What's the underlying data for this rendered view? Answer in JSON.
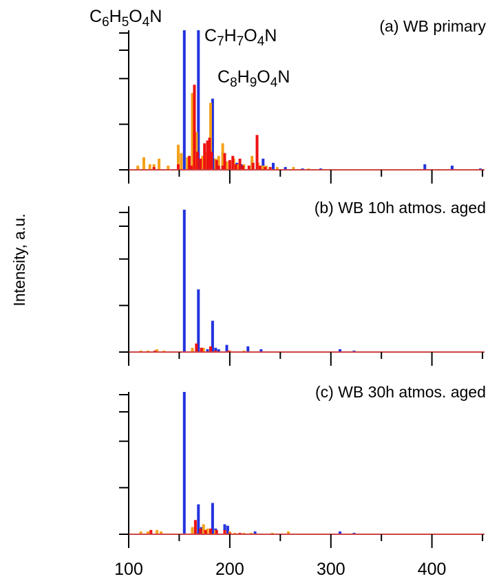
{
  "chart_data": {
    "type": "bar",
    "ylabel": "Intensity, a.u.",
    "xlim": [
      100,
      452
    ],
    "x_ticks": [
      "100",
      "200",
      "300",
      "400"
    ],
    "colors": {
      "blue": "#2233dd",
      "red": "#ee1111",
      "orange": "#f5a11a",
      "axis": "#000000",
      "baseline": "#cc4444"
    },
    "annotations": [
      {
        "parts": [
          [
            "C",
            ""
          ],
          [
            "6",
            "sub"
          ],
          [
            "H",
            ""
          ],
          [
            "5",
            "sub"
          ],
          [
            "O",
            ""
          ],
          [
            "4",
            "sub"
          ],
          [
            "N",
            ""
          ]
        ],
        "panel": 0,
        "x": 155
      },
      {
        "parts": [
          [
            "C",
            ""
          ],
          [
            "7",
            "sub"
          ],
          [
            "H",
            ""
          ],
          [
            "7",
            "sub"
          ],
          [
            "O",
            ""
          ],
          [
            "4",
            "sub"
          ],
          [
            "N",
            ""
          ]
        ],
        "panel": 0,
        "x": 169
      },
      {
        "parts": [
          [
            "C",
            ""
          ],
          [
            "8",
            "sub"
          ],
          [
            "H",
            ""
          ],
          [
            "9",
            "sub"
          ],
          [
            "O",
            ""
          ],
          [
            "4",
            "sub"
          ],
          [
            "N",
            ""
          ]
        ],
        "panel": 0,
        "x": 183
      }
    ],
    "panels": [
      {
        "title": "(a) WB primary",
        "ylim": [
          0,
          100
        ],
        "series": [
          {
            "color": "blue",
            "points": [
              [
                155,
                100
              ],
              [
                169,
                100
              ],
              [
                183,
                51
              ],
              [
                166,
                4
              ],
              [
                171,
                5
              ],
              [
                178,
                10
              ],
              [
                185,
                8
              ],
              [
                193,
                12
              ],
              [
                197,
                6
              ],
              [
                207,
                5
              ],
              [
                212,
                4
              ],
              [
                222,
                7
              ],
              [
                228,
                5
              ],
              [
                233,
                8
              ],
              [
                243,
                5
              ],
              [
                255,
                2
              ],
              [
                272,
                1
              ],
              [
                290,
                1
              ],
              [
                393,
                4
              ],
              [
                420,
                3
              ],
              [
                448,
                1
              ]
            ]
          },
          {
            "color": "orange",
            "points": [
              [
                109,
                3
              ],
              [
                115,
                9
              ],
              [
                121,
                4
              ],
              [
                125,
                4
              ],
              [
                130,
                8
              ],
              [
                139,
                3
              ],
              [
                149,
                18
              ],
              [
                152,
                12
              ],
              [
                158,
                9
              ],
              [
                163,
                55
              ],
              [
                167,
                27
              ],
              [
                173,
                10
              ],
              [
                176,
                13
              ],
              [
                181,
                48
              ],
              [
                186,
                8
              ],
              [
                189,
                10
              ],
              [
                193,
                19
              ],
              [
                197,
                6
              ],
              [
                204,
                8
              ],
              [
                208,
                4
              ],
              [
                214,
                4
              ],
              [
                222,
                10
              ],
              [
                228,
                5
              ],
              [
                233,
                3
              ],
              [
                236,
                3
              ],
              [
                247,
                2
              ],
              [
                263,
                2
              ],
              [
                278,
                1
              ]
            ]
          },
          {
            "color": "red",
            "points": [
              [
                125,
                2
              ],
              [
                149,
                4
              ],
              [
                160,
                10
              ],
              [
                162,
                3
              ],
              [
                165,
                61
              ],
              [
                168,
                13
              ],
              [
                171,
                8
              ],
              [
                175,
                19
              ],
              [
                178,
                21
              ],
              [
                180,
                23
              ],
              [
                182,
                13
              ],
              [
                187,
                7
              ],
              [
                189,
                3
              ],
              [
                193,
                3
              ],
              [
                195,
                12
              ],
              [
                200,
                7
              ],
              [
                203,
                10
              ],
              [
                206,
                4
              ],
              [
                210,
                8
              ],
              [
                213,
                3
              ],
              [
                219,
                3
              ],
              [
                223,
                5
              ],
              [
                227,
                25
              ],
              [
                230,
                3
              ],
              [
                235,
                2
              ],
              [
                240,
                2
              ]
            ]
          }
        ]
      },
      {
        "title": "(b) WB 10h atmos. aged",
        "ylim": [
          0,
          100
        ],
        "series": [
          {
            "color": "blue",
            "points": [
              [
                155,
                100
              ],
              [
                169,
                44
              ],
              [
                183,
                22
              ],
              [
                178,
                2
              ],
              [
                186,
                3
              ],
              [
                189,
                2
              ],
              [
                197,
                5
              ],
              [
                218,
                4
              ],
              [
                231,
                2
              ],
              [
                309,
                2
              ],
              [
                323,
                1
              ]
            ]
          },
          {
            "color": "orange",
            "points": [
              [
                112,
                1
              ],
              [
                119,
                1
              ],
              [
                128,
                2
              ],
              [
                135,
                1
              ],
              [
                163,
                3
              ],
              [
                174,
                3
              ],
              [
                181,
                2
              ],
              [
                200,
                1
              ],
              [
                214,
                1
              ]
            ]
          },
          {
            "color": "red",
            "points": [
              [
                126,
                1
              ],
              [
                167,
                6
              ],
              [
                172,
                3
              ],
              [
                181,
                4
              ],
              [
                186,
                1
              ],
              [
                199,
                1
              ]
            ]
          }
        ]
      },
      {
        "title": "(c) WB 30h atmos. aged",
        "ylim": [
          0,
          100
        ],
        "series": [
          {
            "color": "blue",
            "points": [
              [
                155,
                100
              ],
              [
                169,
                21
              ],
              [
                183,
                22
              ],
              [
                172,
                5
              ],
              [
                186,
                4
              ],
              [
                195,
                7
              ],
              [
                198,
                6
              ],
              [
                225,
                2
              ],
              [
                309,
                2
              ],
              [
                323,
                1
              ]
            ]
          },
          {
            "color": "orange",
            "points": [
              [
                112,
                2
              ],
              [
                119,
                2
              ],
              [
                128,
                3
              ],
              [
                132,
                2
              ],
              [
                163,
                5
              ],
              [
                174,
                7
              ],
              [
                178,
                4
              ],
              [
                186,
                3
              ],
              [
                200,
                2
              ],
              [
                205,
                1
              ],
              [
                214,
                1
              ],
              [
                221,
                1
              ],
              [
                242,
                1
              ],
              [
                258,
                2
              ]
            ]
          },
          {
            "color": "red",
            "points": [
              [
                122,
                3
              ],
              [
                166,
                10
              ],
              [
                171,
                4
              ],
              [
                176,
                3
              ],
              [
                181,
                4
              ],
              [
                187,
                3
              ],
              [
                195,
                3
              ],
              [
                200,
                1
              ],
              [
                210,
                1
              ]
            ]
          }
        ]
      }
    ]
  }
}
